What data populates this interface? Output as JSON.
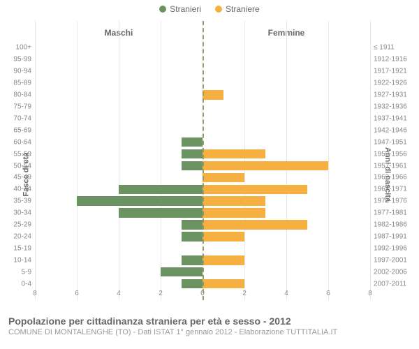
{
  "legend": {
    "male": "Stranieri",
    "female": "Straniere"
  },
  "colors": {
    "male": "#6b9362",
    "female": "#f5b041",
    "grid": "#e8e8e8",
    "center_line": "#999966",
    "text": "#666666",
    "text_light": "#888888",
    "background": "#ffffff"
  },
  "chart": {
    "type": "population-pyramid",
    "x_max": 8,
    "x_ticks": [
      8,
      6,
      4,
      2,
      0,
      2,
      4,
      6,
      8
    ],
    "left_header": "Maschi",
    "right_header": "Femmine",
    "y_axis_left_label": "Fasce di età",
    "y_axis_right_label": "Anni di nascita",
    "label_fontsize": 11,
    "tick_fontsize": 10,
    "bar_height_ratio": 0.8,
    "rows": [
      {
        "age": "100+",
        "birth": "≤ 1911",
        "m": 0,
        "f": 0
      },
      {
        "age": "95-99",
        "birth": "1912-1916",
        "m": 0,
        "f": 0
      },
      {
        "age": "90-94",
        "birth": "1917-1921",
        "m": 0,
        "f": 0
      },
      {
        "age": "85-89",
        "birth": "1922-1926",
        "m": 0,
        "f": 0
      },
      {
        "age": "80-84",
        "birth": "1927-1931",
        "m": 0,
        "f": 1
      },
      {
        "age": "75-79",
        "birth": "1932-1936",
        "m": 0,
        "f": 0
      },
      {
        "age": "70-74",
        "birth": "1937-1941",
        "m": 0,
        "f": 0
      },
      {
        "age": "65-69",
        "birth": "1942-1946",
        "m": 0,
        "f": 0
      },
      {
        "age": "60-64",
        "birth": "1947-1951",
        "m": 1,
        "f": 0
      },
      {
        "age": "55-59",
        "birth": "1952-1956",
        "m": 1,
        "f": 3
      },
      {
        "age": "50-54",
        "birth": "1957-1961",
        "m": 1,
        "f": 6
      },
      {
        "age": "45-49",
        "birth": "1962-1966",
        "m": 0,
        "f": 2
      },
      {
        "age": "40-44",
        "birth": "1967-1971",
        "m": 4,
        "f": 5
      },
      {
        "age": "35-39",
        "birth": "1972-1976",
        "m": 6,
        "f": 3
      },
      {
        "age": "30-34",
        "birth": "1977-1981",
        "m": 4,
        "f": 3
      },
      {
        "age": "25-29",
        "birth": "1982-1986",
        "m": 1,
        "f": 5
      },
      {
        "age": "20-24",
        "birth": "1987-1991",
        "m": 1,
        "f": 2
      },
      {
        "age": "15-19",
        "birth": "1992-1996",
        "m": 0,
        "f": 0
      },
      {
        "age": "10-14",
        "birth": "1997-2001",
        "m": 1,
        "f": 2
      },
      {
        "age": "5-9",
        "birth": "2002-2006",
        "m": 2,
        "f": 0
      },
      {
        "age": "0-4",
        "birth": "2007-2011",
        "m": 1,
        "f": 2
      }
    ]
  },
  "footer": {
    "title": "Popolazione per cittadinanza straniera per età e sesso - 2012",
    "subtitle": "COMUNE DI MONTALENGHE (TO) - Dati ISTAT 1° gennaio 2012 - Elaborazione TUTTITALIA.IT",
    "title_fontsize": 14,
    "subtitle_fontsize": 11
  }
}
